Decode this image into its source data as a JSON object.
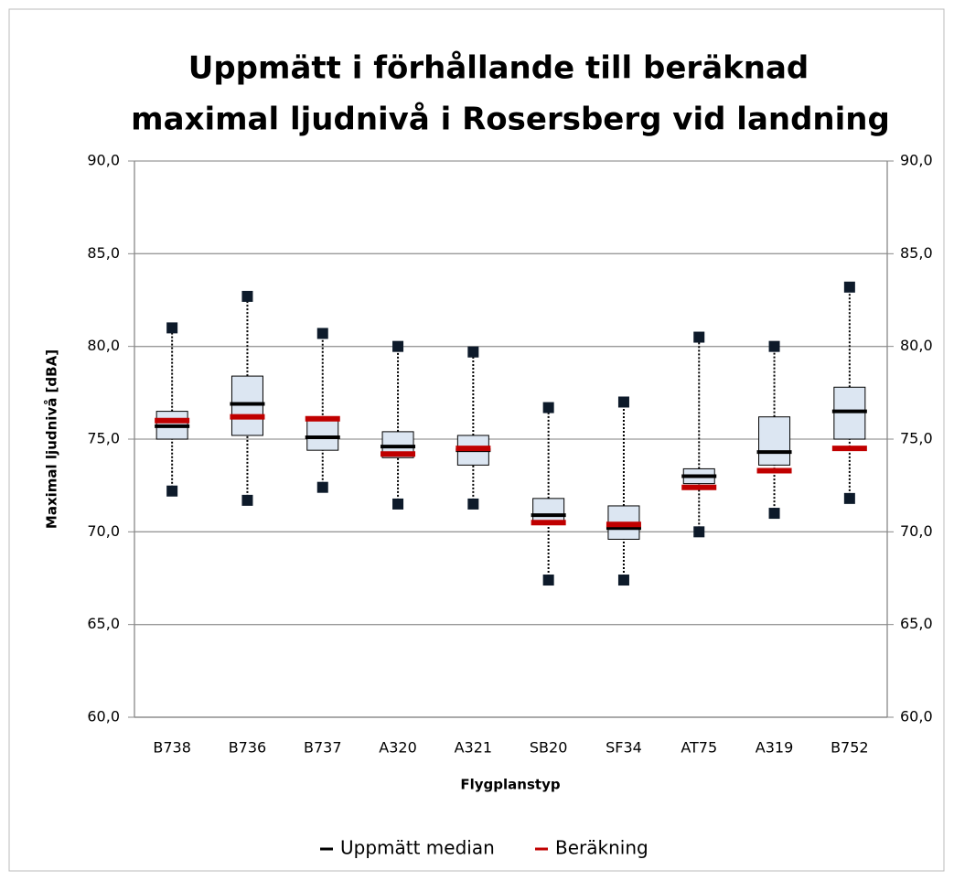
{
  "chart_data": {
    "type": "box",
    "title": [
      "Uppmätt i förhållande till beräknad",
      "maximal ljudnivå i Rosersberg vid landning"
    ],
    "y_label": "Maximal ljudnivå [dBA]",
    "x_label": "Flygplanstyp",
    "categories": [
      "B738",
      "B736",
      "B737",
      "A320",
      "A321",
      "SB20",
      "SF34",
      "AT75",
      "A319",
      "B752"
    ],
    "box_color": "#dce6f2",
    "series": [
      {
        "name": "Uppmätt median",
        "color": "#000000",
        "values": [
          75.7,
          76.9,
          75.1,
          74.6,
          74.4,
          70.9,
          70.2,
          73.0,
          74.3,
          76.5
        ],
        "max": [
          81.0,
          82.7,
          80.7,
          80.0,
          79.7,
          76.7,
          77.0,
          80.5,
          80.0,
          83.2
        ],
        "q3": [
          76.5,
          78.4,
          76.1,
          75.4,
          75.2,
          71.8,
          71.4,
          73.4,
          76.2,
          77.8
        ],
        "q1": [
          75.0,
          75.2,
          74.4,
          74.0,
          73.6,
          70.4,
          69.6,
          72.6,
          73.6,
          75.0
        ],
        "min": [
          72.2,
          71.7,
          72.4,
          71.5,
          71.5,
          67.4,
          67.4,
          70.0,
          71.0,
          71.8
        ]
      },
      {
        "name": "Beräkning",
        "color": "#c00000",
        "values": [
          76.0,
          76.2,
          76.1,
          74.2,
          74.5,
          70.5,
          70.4,
          72.4,
          73.3,
          74.5
        ]
      }
    ],
    "ylim": [
      60,
      90
    ],
    "yticks": [
      {
        "value": 60,
        "label": "60,0"
      },
      {
        "value": 65,
        "label": "65,0"
      },
      {
        "value": 70,
        "label": "70,0"
      },
      {
        "value": 75,
        "label": "75,0"
      },
      {
        "value": 80,
        "label": "80,0"
      },
      {
        "value": 85,
        "label": "85,0"
      },
      {
        "value": 90,
        "label": "90,0"
      }
    ],
    "y2lim": [
      60,
      90
    ],
    "y2ticks": [
      {
        "value": 60,
        "label": "60,0"
      },
      {
        "value": 65,
        "label": "65,0"
      },
      {
        "value": 70,
        "label": "70,0"
      },
      {
        "value": 75,
        "label": "75,0"
      },
      {
        "value": 80,
        "label": "80,0"
      },
      {
        "value": 85,
        "label": "85,0"
      },
      {
        "value": 90,
        "label": "90,0"
      }
    ],
    "grid": true
  }
}
